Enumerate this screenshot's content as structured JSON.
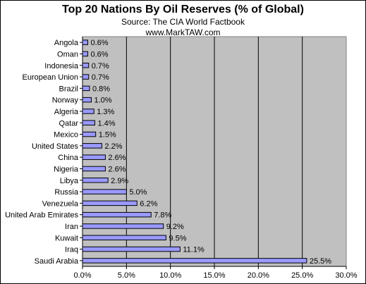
{
  "chart_data": {
    "type": "bar",
    "orientation": "horizontal",
    "title": "Top 20 Nations By Oil Reserves (% of Global)",
    "subtitle": "Source: The CIA World Factbook",
    "credit": "www.MarkTAW.com",
    "categories": [
      "Angola",
      "Oman",
      "Indonesia",
      "European Union",
      "Brazil",
      "Norway",
      "Algeria",
      "Qatar",
      "Mexico",
      "United States",
      "China",
      "Nigeria",
      "Libya",
      "Russia",
      "Venezuela",
      "United Arab Emirates",
      "Iran",
      "Kuwait",
      "Iraq",
      "Saudi Arabia"
    ],
    "values": [
      0.6,
      0.6,
      0.7,
      0.7,
      0.8,
      1.0,
      1.3,
      1.4,
      1.5,
      2.2,
      2.6,
      2.6,
      2.9,
      5.0,
      6.2,
      7.8,
      9.2,
      9.5,
      11.1,
      25.5
    ],
    "data_labels": [
      "0.6%",
      "0.6%",
      "0.7%",
      "0.7%",
      "0.8%",
      "1.0%",
      "1.3%",
      "1.4%",
      "1.5%",
      "2.2%",
      "2.6%",
      "2.6%",
      "2.9%",
      "5.0%",
      "6.2%",
      "7.8%",
      "9.2%",
      "9.5%",
      "11.1%",
      "25.5%"
    ],
    "xlim": [
      0,
      30
    ],
    "xticks": [
      0,
      5,
      10,
      15,
      20,
      25,
      30
    ],
    "xtick_labels": [
      "0.0%",
      "5.0%",
      "10.0%",
      "15.0%",
      "20.0%",
      "25.0%",
      "30.0%"
    ],
    "grid": "vertical",
    "legend": "none",
    "colors": {
      "plot_background": "#c0c0c0",
      "bar_fill": "#9999ff",
      "bar_stroke": "#000000",
      "gridline": "#000000"
    }
  }
}
